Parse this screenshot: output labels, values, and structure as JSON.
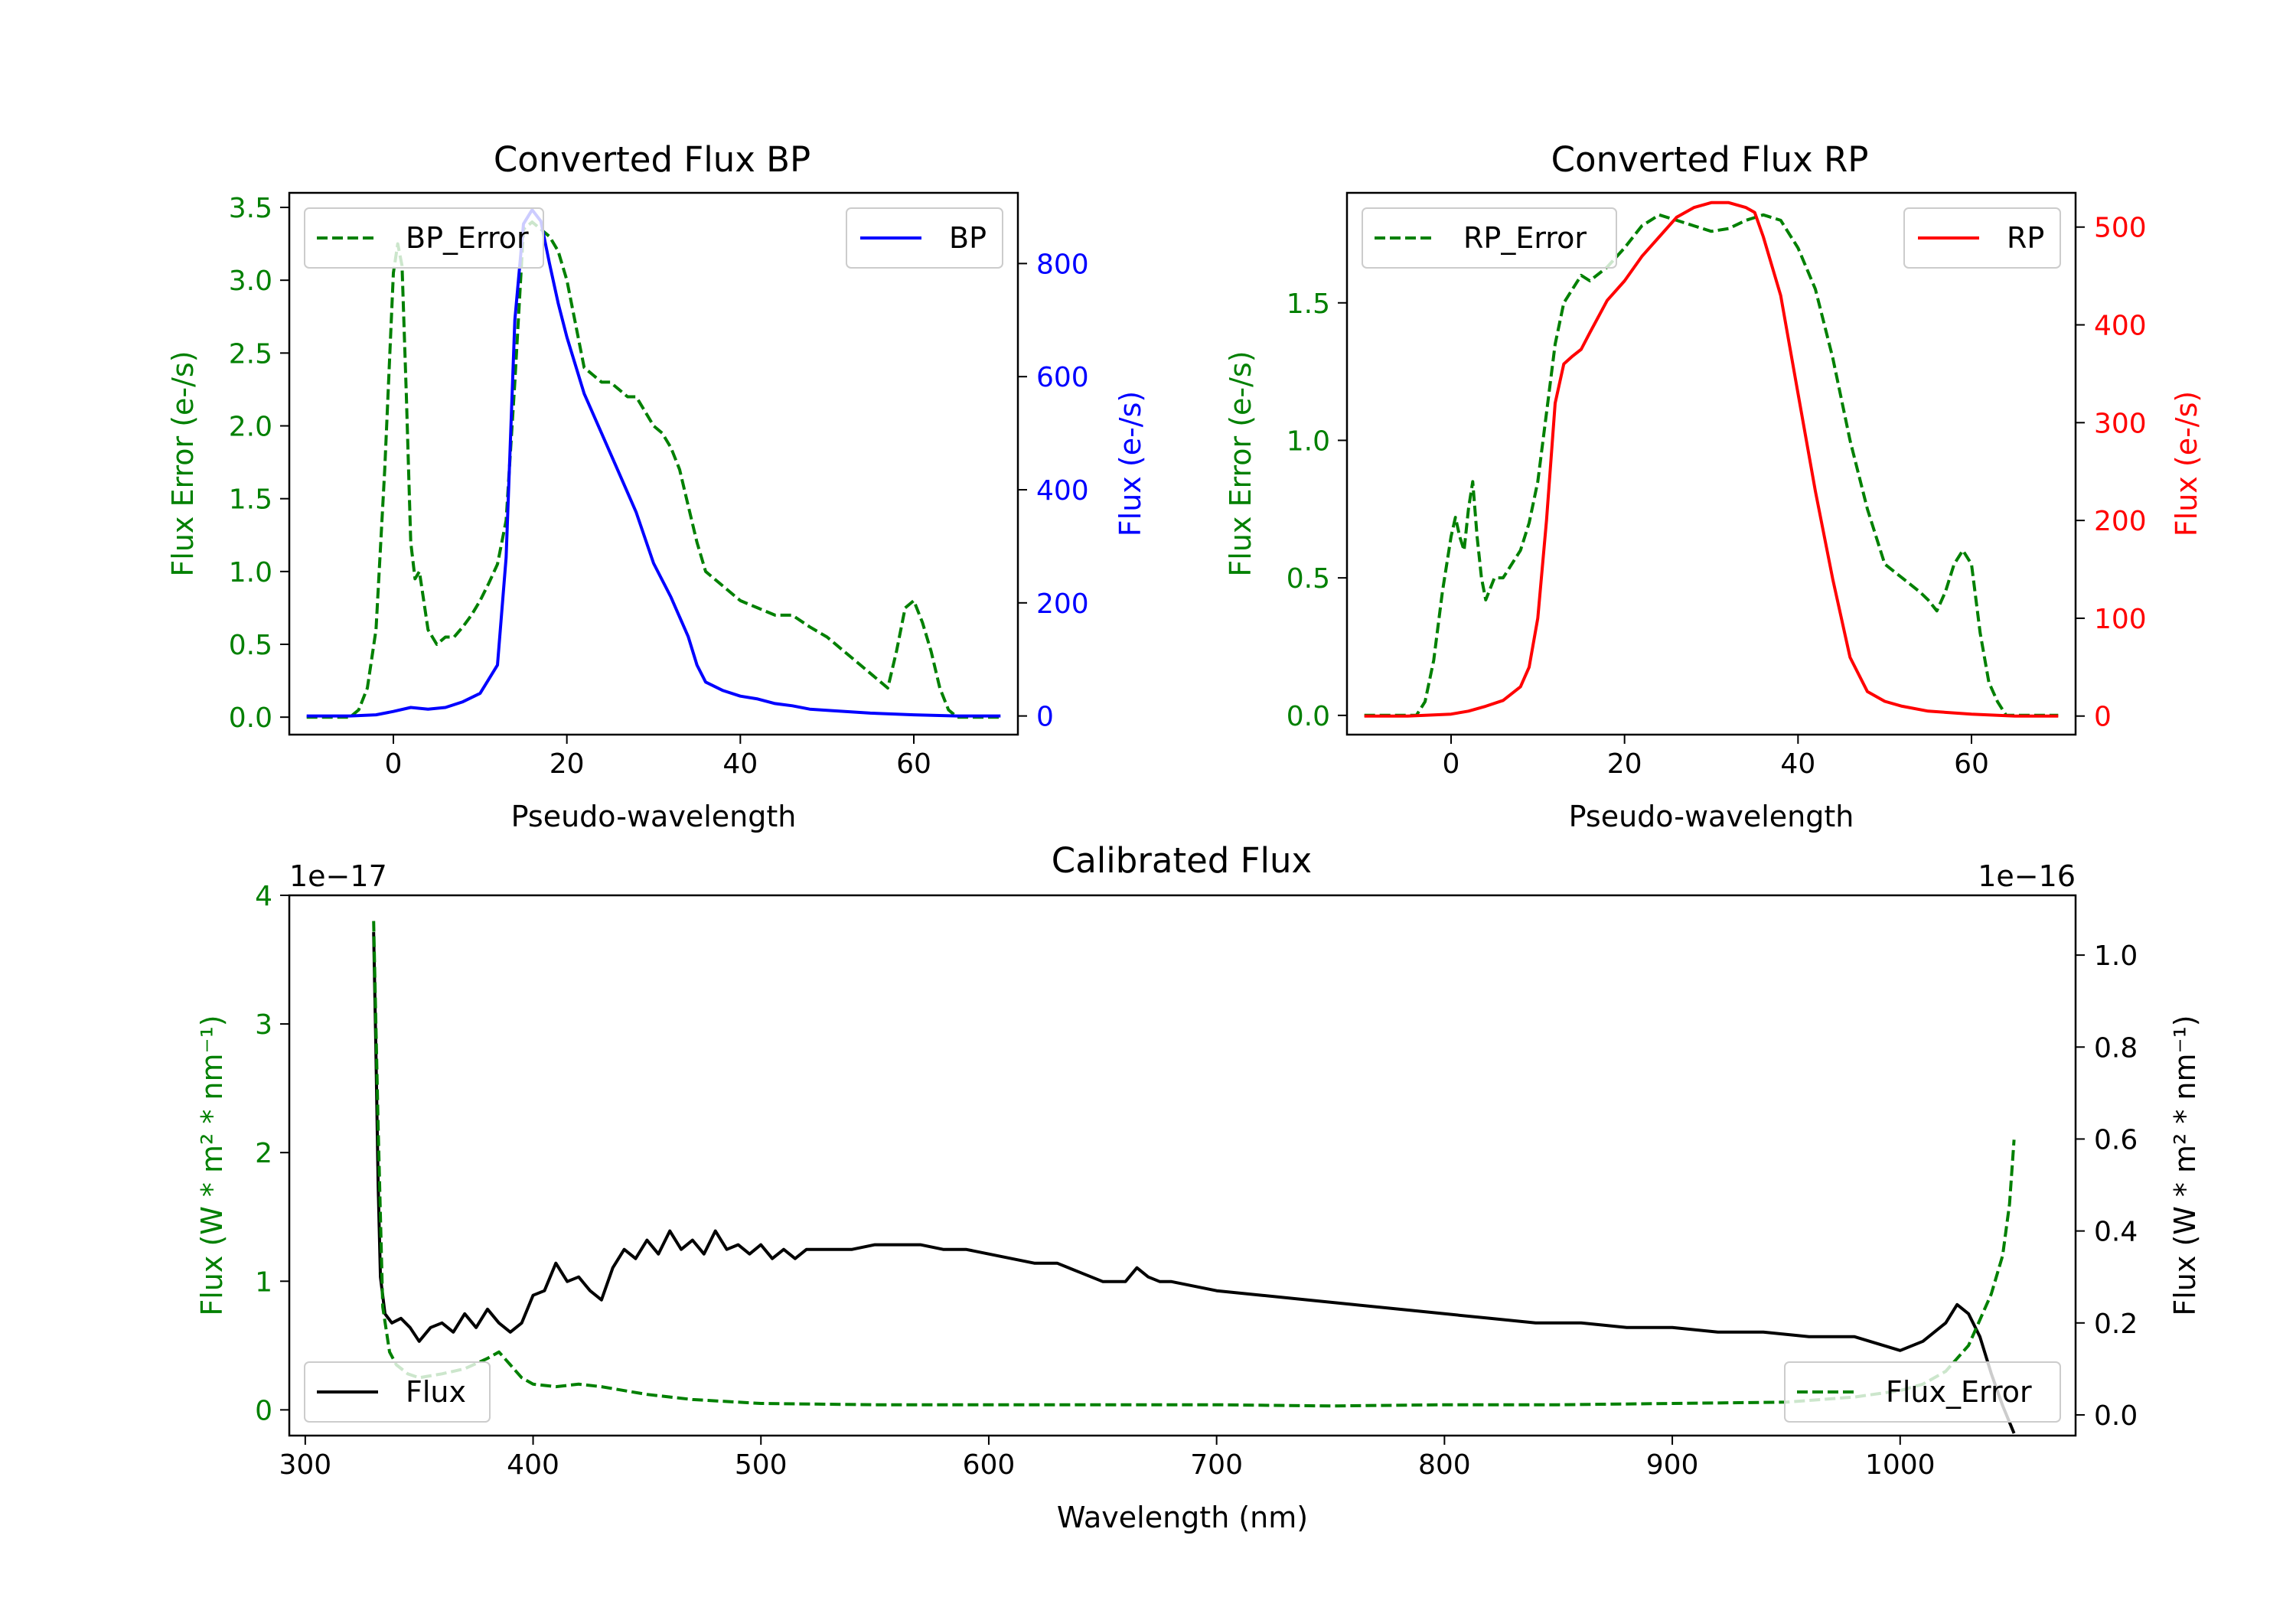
{
  "colors": {
    "green": "#008000",
    "blue": "#0000ff",
    "red": "#ff0000",
    "black": "#000000"
  },
  "chart_data": [
    {
      "type": "line",
      "title": "Converted Flux BP",
      "xlabel": "Pseudo-wavelength",
      "ylabel_left": "Flux Error (e-/s)",
      "ylabel_right": "Flux (e-/s)",
      "xlim": [
        -12,
        72
      ],
      "ylim_left": [
        -0.12,
        3.6
      ],
      "ylim_right": [
        -33,
        925
      ],
      "xticks": [
        "0",
        "20",
        "40",
        "60"
      ],
      "yticks_left": [
        "0.0",
        "0.5",
        "1.0",
        "1.5",
        "2.0",
        "2.5",
        "3.0",
        "3.5"
      ],
      "yticks_right": [
        "0",
        "200",
        "400",
        "600",
        "800"
      ],
      "legend_left": "BP_Error",
      "legend_right": "BP",
      "series": [
        {
          "name": "BP_Error",
          "axis": "left",
          "style": "dashed",
          "color": "#008000",
          "x": [
            -10,
            -5,
            -4,
            -3,
            -2,
            -1,
            0,
            0.5,
            1,
            1.5,
            2,
            2.5,
            3,
            4,
            5,
            6,
            7,
            8,
            9,
            10,
            11,
            12,
            13,
            14,
            15,
            16,
            17,
            18,
            19,
            20,
            21,
            22,
            23,
            24,
            25,
            26,
            27,
            28,
            29,
            30,
            31,
            32,
            33,
            34,
            35,
            36,
            38,
            40,
            42,
            44,
            46,
            48,
            50,
            52,
            54,
            56,
            57,
            58,
            59,
            60,
            61,
            62,
            63,
            64,
            65,
            66,
            70
          ],
          "y": [
            0,
            0,
            0.05,
            0.2,
            0.6,
            1.7,
            3.05,
            3.25,
            3.1,
            2.2,
            1.2,
            0.95,
            1.0,
            0.6,
            0.5,
            0.55,
            0.55,
            0.62,
            0.7,
            0.8,
            0.92,
            1.05,
            1.35,
            2.3,
            3.35,
            3.4,
            3.35,
            3.3,
            3.2,
            3.0,
            2.7,
            2.4,
            2.35,
            2.3,
            2.3,
            2.25,
            2.2,
            2.2,
            2.1,
            2.0,
            1.95,
            1.85,
            1.7,
            1.45,
            1.2,
            1.0,
            0.9,
            0.8,
            0.75,
            0.7,
            0.7,
            0.62,
            0.55,
            0.45,
            0.35,
            0.25,
            0.2,
            0.45,
            0.75,
            0.8,
            0.65,
            0.45,
            0.2,
            0.05,
            0,
            0,
            0
          ]
        },
        {
          "name": "BP",
          "axis": "right",
          "style": "solid",
          "color": "#0000ff",
          "x": [
            -10,
            -5,
            -2,
            0,
            2,
            4,
            6,
            8,
            10,
            12,
            13,
            14,
            15,
            16,
            17,
            18,
            19,
            20,
            22,
            24,
            26,
            28,
            30,
            32,
            34,
            35,
            36,
            38,
            40,
            42,
            44,
            46,
            48,
            50,
            55,
            60,
            65,
            70
          ],
          "y": [
            0,
            0,
            2,
            8,
            15,
            12,
            15,
            25,
            40,
            90,
            280,
            700,
            870,
            895,
            875,
            800,
            730,
            670,
            570,
            500,
            430,
            360,
            270,
            210,
            140,
            90,
            60,
            45,
            35,
            30,
            22,
            18,
            12,
            10,
            5,
            2,
            0,
            0
          ]
        }
      ]
    },
    {
      "type": "line",
      "title": "Converted Flux RP",
      "xlabel": "Pseudo-wavelength",
      "ylabel_left": "Flux Error (e-/s)",
      "ylabel_right": "Flux (e-/s)",
      "xlim": [
        -12,
        72
      ],
      "ylim_left": [
        -0.07,
        1.9
      ],
      "ylim_right": [
        -19,
        535
      ],
      "xticks": [
        "0",
        "20",
        "40",
        "60"
      ],
      "yticks_left": [
        "0.0",
        "0.5",
        "1.0",
        "1.5"
      ],
      "yticks_right": [
        "0",
        "100",
        "200",
        "300",
        "400",
        "500"
      ],
      "legend_left": "RP_Error",
      "legend_right": "RP",
      "series": [
        {
          "name": "RP_Error",
          "axis": "left",
          "style": "dashed",
          "color": "#008000",
          "x": [
            -10,
            -4,
            -3,
            -2,
            -1,
            0,
            0.5,
            1,
            1.5,
            2,
            2.5,
            3,
            3.5,
            4,
            5,
            6,
            7,
            8,
            9,
            10,
            11,
            12,
            13,
            14,
            15,
            16,
            18,
            20,
            22,
            24,
            26,
            28,
            30,
            32,
            34,
            36,
            38,
            40,
            42,
            44,
            46,
            48,
            50,
            52,
            54,
            55,
            56,
            57,
            58,
            59,
            60,
            61,
            62,
            63,
            64,
            65,
            70
          ],
          "y": [
            0,
            0,
            0.05,
            0.2,
            0.45,
            0.65,
            0.72,
            0.65,
            0.6,
            0.75,
            0.85,
            0.65,
            0.5,
            0.42,
            0.5,
            0.5,
            0.55,
            0.6,
            0.7,
            0.85,
            1.1,
            1.35,
            1.5,
            1.55,
            1.6,
            1.58,
            1.63,
            1.7,
            1.78,
            1.82,
            1.8,
            1.78,
            1.76,
            1.77,
            1.8,
            1.82,
            1.8,
            1.7,
            1.55,
            1.3,
            1.0,
            0.75,
            0.55,
            0.5,
            0.45,
            0.42,
            0.38,
            0.45,
            0.55,
            0.6,
            0.55,
            0.3,
            0.12,
            0.05,
            0,
            0,
            0
          ]
        },
        {
          "name": "RP",
          "axis": "right",
          "style": "solid",
          "color": "#ff0000",
          "x": [
            -10,
            -5,
            0,
            2,
            4,
            6,
            8,
            9,
            10,
            11,
            12,
            13,
            14,
            15,
            16,
            18,
            20,
            22,
            24,
            26,
            28,
            30,
            32,
            34,
            35,
            36,
            38,
            40,
            42,
            44,
            46,
            48,
            50,
            52,
            55,
            60,
            65,
            70
          ],
          "y": [
            0,
            0,
            2,
            5,
            10,
            16,
            30,
            50,
            100,
            200,
            320,
            360,
            368,
            375,
            392,
            425,
            445,
            470,
            490,
            510,
            520,
            525,
            525,
            520,
            515,
            490,
            430,
            330,
            230,
            140,
            60,
            25,
            15,
            10,
            5,
            2,
            0,
            0
          ]
        }
      ]
    },
    {
      "type": "line",
      "title": "Calibrated Flux",
      "xlabel": "Wavelength (nm)",
      "ylabel_left": "Flux (W * m² * nm⁻¹)",
      "ylabel_right": "Flux (W * m² * nm⁻¹)",
      "xlim": [
        293,
        1077
      ],
      "ylim_left": [
        -0.2,
        4.0
      ],
      "ylim_right": [
        -0.045,
        1.13
      ],
      "xticks": [
        "300",
        "400",
        "500",
        "600",
        "700",
        "800",
        "900",
        "1000"
      ],
      "yticks_left": [
        "0",
        "1",
        "2",
        "3",
        "4"
      ],
      "yticks_right": [
        "0.0",
        "0.2",
        "0.4",
        "0.6",
        "0.8",
        "1.0"
      ],
      "offset_left": "1e−17",
      "offset_right": "1e−16",
      "legend_left": "Flux",
      "legend_right": "Flux_Error",
      "series": [
        {
          "name": "Flux",
          "axis": "right",
          "style": "solid",
          "color": "#000000",
          "x": [
            330,
            331,
            332,
            333,
            335,
            338,
            342,
            346,
            350,
            355,
            360,
            365,
            370,
            375,
            380,
            385,
            390,
            395,
            400,
            405,
            410,
            415,
            420,
            425,
            430,
            435,
            440,
            445,
            450,
            455,
            460,
            465,
            470,
            475,
            480,
            485,
            490,
            495,
            500,
            505,
            510,
            515,
            520,
            530,
            540,
            550,
            560,
            570,
            580,
            590,
            600,
            610,
            620,
            630,
            640,
            650,
            660,
            665,
            670,
            675,
            680,
            690,
            700,
            720,
            740,
            760,
            780,
            800,
            820,
            840,
            860,
            880,
            900,
            920,
            940,
            960,
            980,
            1000,
            1010,
            1020,
            1025,
            1030,
            1035,
            1040,
            1045,
            1050
          ],
          "y": [
            1.05,
            0.8,
            0.5,
            0.3,
            0.22,
            0.2,
            0.21,
            0.19,
            0.16,
            0.19,
            0.2,
            0.18,
            0.22,
            0.19,
            0.23,
            0.2,
            0.18,
            0.2,
            0.26,
            0.27,
            0.33,
            0.29,
            0.3,
            0.27,
            0.25,
            0.32,
            0.36,
            0.34,
            0.38,
            0.35,
            0.4,
            0.36,
            0.38,
            0.35,
            0.4,
            0.36,
            0.37,
            0.35,
            0.37,
            0.34,
            0.36,
            0.34,
            0.36,
            0.36,
            0.36,
            0.37,
            0.37,
            0.37,
            0.36,
            0.36,
            0.35,
            0.34,
            0.33,
            0.33,
            0.31,
            0.29,
            0.29,
            0.32,
            0.3,
            0.29,
            0.29,
            0.28,
            0.27,
            0.26,
            0.25,
            0.24,
            0.23,
            0.22,
            0.21,
            0.2,
            0.2,
            0.19,
            0.19,
            0.18,
            0.18,
            0.17,
            0.17,
            0.14,
            0.16,
            0.2,
            0.24,
            0.22,
            0.17,
            0.09,
            0.02,
            -0.04
          ]
        },
        {
          "name": "Flux_Error",
          "axis": "left",
          "style": "dashed",
          "color": "#008000",
          "x": [
            330,
            332,
            334,
            337,
            340,
            345,
            350,
            360,
            370,
            380,
            385,
            390,
            395,
            400,
            410,
            420,
            430,
            440,
            450,
            470,
            500,
            550,
            600,
            650,
            700,
            750,
            800,
            850,
            900,
            950,
            980,
            1000,
            1010,
            1020,
            1030,
            1035,
            1040,
            1045,
            1048,
            1050
          ],
          "y": [
            3.8,
            2.2,
            0.8,
            0.45,
            0.35,
            0.28,
            0.25,
            0.28,
            0.32,
            0.4,
            0.45,
            0.35,
            0.25,
            0.2,
            0.18,
            0.2,
            0.18,
            0.15,
            0.12,
            0.08,
            0.05,
            0.04,
            0.04,
            0.04,
            0.04,
            0.03,
            0.04,
            0.04,
            0.05,
            0.06,
            0.1,
            0.15,
            0.2,
            0.3,
            0.5,
            0.7,
            0.9,
            1.2,
            1.6,
            2.1
          ]
        }
      ]
    }
  ]
}
